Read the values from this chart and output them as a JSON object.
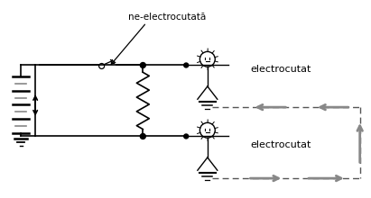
{
  "bg_color": "#ffffff",
  "line_color": "#000000",
  "gray_color": "#888888",
  "dashed_color": "#555555",
  "label_ne": "ne-electrocutată",
  "label_e1": "electrocutat",
  "label_e2": "electrocutat",
  "figsize": [
    4.11,
    2.2
  ],
  "dpi": 100
}
